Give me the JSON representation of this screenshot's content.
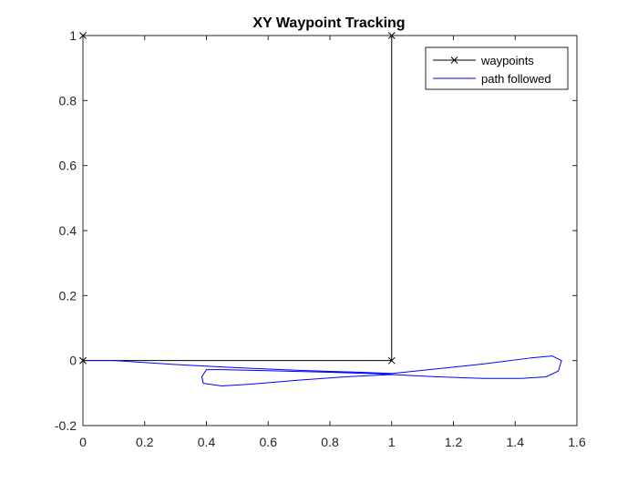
{
  "chart_data": {
    "type": "line",
    "title": "XY Waypoint Tracking",
    "xlabel": "",
    "ylabel": "",
    "xlim": [
      0,
      1.6
    ],
    "ylim": [
      -0.2,
      1
    ],
    "xticks": [
      0,
      0.2,
      0.4,
      0.6,
      0.8,
      1,
      1.2,
      1.4,
      1.6
    ],
    "xtick_labels": [
      "0",
      "0.2",
      "0.4",
      "0.6",
      "0.8",
      "1",
      "1.2",
      "1.4",
      "1.6"
    ],
    "yticks": [
      -0.2,
      0,
      0.2,
      0.4,
      0.6,
      0.8,
      1
    ],
    "ytick_labels": [
      "-0.2",
      "0",
      "0.2",
      "0.4",
      "0.6",
      "0.8",
      "1"
    ],
    "grid": false,
    "legend_position": "top-right",
    "series": [
      {
        "name": "waypoints",
        "color": "#000000",
        "marker": "x",
        "x": [
          0,
          0,
          1,
          1,
          0
        ],
        "y": [
          0,
          1,
          1,
          0,
          0
        ]
      },
      {
        "name": "path followed",
        "color": "#0000ff",
        "marker": "none",
        "x": [
          0,
          0.1,
          0.3,
          0.5,
          0.7,
          0.9,
          1.0,
          1.1,
          1.3,
          1.45,
          1.52,
          1.55,
          1.54,
          1.5,
          1.42,
          1.3,
          1.15,
          1.0,
          0.85,
          0.7,
          0.55,
          0.45,
          0.39,
          0.385,
          0.4,
          0.45,
          0.6,
          0.8,
          1.0
        ],
        "y": [
          0,
          0,
          -0.012,
          -0.022,
          -0.03,
          -0.036,
          -0.04,
          -0.03,
          -0.01,
          0.008,
          0.014,
          0.0,
          -0.032,
          -0.05,
          -0.055,
          -0.055,
          -0.05,
          -0.043,
          -0.05,
          -0.06,
          -0.072,
          -0.078,
          -0.07,
          -0.05,
          -0.028,
          -0.028,
          -0.031,
          -0.036,
          -0.042
        ]
      }
    ]
  }
}
